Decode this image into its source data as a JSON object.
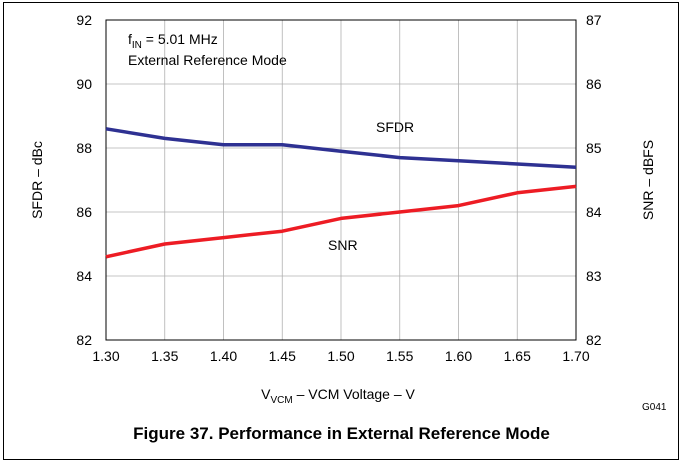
{
  "chart_data": {
    "type": "line",
    "x": [
      1.3,
      1.35,
      1.4,
      1.45,
      1.5,
      1.55,
      1.6,
      1.65,
      1.7
    ],
    "x_ticks": [
      "1.30",
      "1.35",
      "1.40",
      "1.45",
      "1.50",
      "1.55",
      "1.60",
      "1.65",
      "1.70"
    ],
    "xlim": [
      1.3,
      1.7
    ],
    "xlabel_main": "V",
    "xlabel_sub": "VCM",
    "xlabel_rest": " – VCM Voltage – V",
    "ylabel_left": "SFDR – dBc",
    "ylim_left": [
      82,
      92
    ],
    "y_ticks_left": [
      "82",
      "84",
      "86",
      "88",
      "90",
      "92"
    ],
    "ylabel_right": "SNR – dBFS",
    "ylim_right": [
      82,
      87
    ],
    "y_ticks_right": [
      "82",
      "83",
      "84",
      "85",
      "86",
      "87"
    ],
    "grid": true,
    "series": [
      {
        "name": "SFDR",
        "axis": "left",
        "color": "#2e3192",
        "values": [
          88.6,
          88.3,
          88.1,
          88.1,
          87.9,
          87.7,
          87.6,
          87.5,
          87.4
        ]
      },
      {
        "name": "SNR",
        "axis": "right",
        "color": "#ed1c24",
        "values": [
          83.3,
          83.5,
          83.6,
          83.7,
          83.9,
          84.0,
          84.1,
          84.3,
          84.4
        ]
      }
    ],
    "annotation_line1_main": "f",
    "annotation_line1_sub": "IN",
    "annotation_line1_rest": " = 5.01 MHz",
    "annotation_line2": "External Reference Mode",
    "figure_code": "G041",
    "caption": "Figure 37. Performance in External Reference Mode"
  }
}
